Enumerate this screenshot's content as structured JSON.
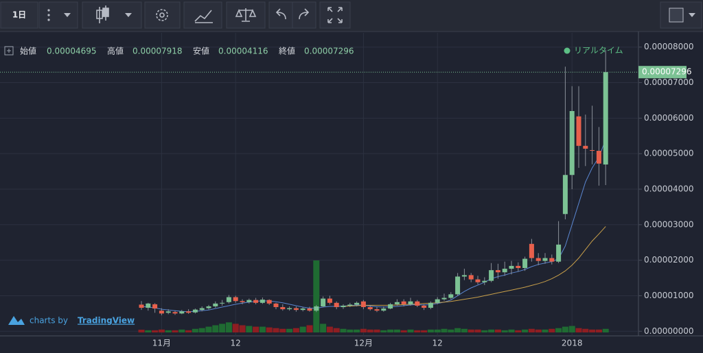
{
  "toolbar": {
    "interval": "1日"
  },
  "header": {
    "open_label": "始値",
    "high_label": "高値",
    "low_label": "安値",
    "close_label": "終値",
    "realtime": "リアルタイム"
  },
  "watermark": {
    "prefix": "charts by",
    "brand": "TradingView"
  },
  "chart_data": {
    "type": "candlestick",
    "categories": [
      null,
      null,
      null,
      "11月",
      null,
      null,
      null,
      null,
      null,
      null,
      null,
      null,
      null,
      null,
      "12",
      null,
      null,
      null,
      null,
      null,
      null,
      null,
      null,
      null,
      null,
      null,
      null,
      null,
      null,
      null,
      null,
      null,
      null,
      "12月",
      null,
      null,
      null,
      null,
      null,
      null,
      null,
      null,
      null,
      null,
      "12",
      null,
      null,
      null,
      null,
      null,
      null,
      null,
      null,
      null,
      null,
      null,
      null,
      null,
      null,
      null,
      null,
      null,
      null,
      null,
      "2018",
      null,
      null,
      null,
      null,
      null
    ],
    "ohlc": {
      "open": [
        7.5e-06,
        6.6e-06,
        7.6e-06,
        5.8e-06,
        5.2e-06,
        5.4e-06,
        5e-06,
        5.6e-06,
        5.3e-06,
        6e-06,
        6.5e-06,
        7e-06,
        7.8e-06,
        8.2e-06,
        9.6e-06,
        8.5e-06,
        8.2e-06,
        8.8e-06,
        8e-06,
        8.8e-06,
        7.8e-06,
        6.8e-06,
        6.2e-06,
        6.5e-06,
        6e-06,
        6.4e-06,
        5.8e-06,
        7e-06,
        9.2e-06,
        8e-06,
        6.8e-06,
        7.2e-06,
        7.5e-06,
        8.4e-06,
        6.8e-06,
        6.2e-06,
        5.8e-06,
        6.4e-06,
        7.6e-06,
        8.4e-06,
        7.6e-06,
        8.4e-06,
        7.2e-06,
        6.6e-06,
        8e-06,
        9e-06,
        9.4e-06,
        1.04e-05,
        1.54e-05,
        1.58e-05,
        1.46e-05,
        1.38e-05,
        1.42e-05,
        1.72e-05,
        1.66e-05,
        1.76e-05,
        1.84e-05,
        1.78e-05,
        2.46e-05,
        2.06e-05,
        1.98e-05,
        2.06e-05,
        1.96e-05,
        3.3e-05,
        4.4e-05,
        6.05e-05,
        5.22e-05,
        5.1e-05,
        5.08e-05,
        4.695e-05
      ],
      "high": [
        8.5e-06,
        8e-06,
        7.9e-06,
        6.5e-06,
        6.2e-06,
        5.8e-06,
        6e-06,
        6.2e-06,
        6.4e-06,
        7e-06,
        7.4e-06,
        8.4e-06,
        8.8e-06,
        1.02e-05,
        1e-05,
        9e-06,
        9.2e-06,
        9.4e-06,
        9.5e-06,
        9e-06,
        8e-06,
        7.6e-06,
        7e-06,
        7e-06,
        6.8e-06,
        6.9e-06,
        7.4e-06,
        9.8e-06,
        1e-05,
        8.4e-06,
        7.6e-06,
        8e-06,
        8.4e-06,
        8.8e-06,
        7.4e-06,
        6.8e-06,
        7e-06,
        8e-06,
        9e-06,
        9e-06,
        9.4e-06,
        8.8e-06,
        7.6e-06,
        8.4e-06,
        9.6e-06,
        1.06e-05,
        1.1e-05,
        1.64e-05,
        1.76e-05,
        1.64e-05,
        1.56e-05,
        1.52e-05,
        1.92e-05,
        1.9e-05,
        1.96e-05,
        1.98e-05,
        1.94e-05,
        2.1e-05,
        2.6e-05,
        2.2e-05,
        2.2e-05,
        2.16e-05,
        3.1e-05,
        7.45e-05,
        6.9e-05,
        6.9e-05,
        6.1e-05,
        6.35e-05,
        5.75e-05,
        7.918e-05
      ],
      "low": [
        6e-06,
        5.8e-06,
        5.2e-06,
        4.5e-06,
        4.8e-06,
        4.6e-06,
        4.8e-06,
        4.9e-06,
        5e-06,
        5.6e-06,
        6.1e-06,
        6.6e-06,
        7.2e-06,
        7.8e-06,
        8e-06,
        7.6e-06,
        7.8e-06,
        7.6e-06,
        7.7e-06,
        7.4e-06,
        6.2e-06,
        5.8e-06,
        5.8e-06,
        5.5e-06,
        5.6e-06,
        5.5e-06,
        5.4e-06,
        6.8e-06,
        7.5e-06,
        6.2e-06,
        6.3e-06,
        6.8e-06,
        7e-06,
        6.2e-06,
        5.8e-06,
        5.4e-06,
        5.5e-06,
        6.2e-06,
        7.2e-06,
        7e-06,
        7.2e-06,
        6.8e-06,
        6e-06,
        6.2e-06,
        7.6e-06,
        8.6e-06,
        9e-06,
        1e-05,
        1.44e-05,
        1.38e-05,
        1.32e-05,
        1.3e-05,
        1.38e-05,
        1.48e-05,
        1.56e-05,
        1.6e-05,
        1.68e-05,
        1.7e-05,
        1.96e-05,
        1.86e-05,
        1.9e-05,
        1.88e-05,
        1.92e-05,
        3.15e-05,
        4e-05,
        4.6e-05,
        4.65e-05,
        4.7e-05,
        4.1e-05,
        4.116e-05
      ],
      "close": [
        6.6e-06,
        7.8e-06,
        6.4e-06,
        5e-06,
        5.6e-06,
        5e-06,
        5.6e-06,
        5.2e-06,
        6.1e-06,
        6.5e-06,
        7e-06,
        7.8e-06,
        8e-06,
        9.6e-06,
        8.5e-06,
        8.2e-06,
        8.8e-06,
        8e-06,
        8.9e-06,
        7.8e-06,
        6.8e-06,
        6.2e-06,
        6.5e-06,
        6e-06,
        6.4e-06,
        5.8e-06,
        7e-06,
        9.2e-06,
        8e-06,
        6.8e-06,
        7.2e-06,
        7.5e-06,
        8e-06,
        6.8e-06,
        6.2e-06,
        5.8e-06,
        6.4e-06,
        7.6e-06,
        8.2e-06,
        7.6e-06,
        8.4e-06,
        7.2e-06,
        6.6e-06,
        8e-06,
        9e-06,
        9.4e-06,
        1.04e-05,
        1.54e-05,
        1.58e-05,
        1.46e-05,
        1.38e-05,
        1.42e-05,
        1.72e-05,
        1.66e-05,
        1.76e-05,
        1.84e-05,
        1.78e-05,
        2.04e-05,
        2.06e-05,
        1.98e-05,
        2.06e-05,
        1.96e-05,
        2.44e-05,
        4.4e-05,
        6.2e-05,
        5.22e-05,
        5.14e-05,
        5.08e-05,
        4.72e-05,
        7.296e-05
      ]
    },
    "volume": [
      4,
      3,
      3,
      4,
      3,
      3,
      4,
      3,
      5,
      6,
      8,
      10,
      12,
      14,
      12,
      10,
      9,
      8,
      8,
      7,
      6,
      5,
      5,
      6,
      8,
      10,
      100,
      12,
      8,
      6,
      5,
      4,
      4,
      5,
      4,
      4,
      3,
      4,
      4,
      3,
      4,
      3,
      3,
      4,
      4,
      5,
      4,
      6,
      5,
      4,
      4,
      3,
      4,
      4,
      3,
      4,
      3,
      4,
      5,
      4,
      4,
      5,
      6,
      8,
      9,
      6,
      5,
      4,
      4,
      5
    ],
    "lines": [
      {
        "color": "#5b86d0",
        "values": [
          7e-06,
          6.8e-06,
          6.6e-06,
          6.2e-06,
          6e-06,
          5.8e-06,
          5.6e-06,
          5.5e-06,
          5.6e-06,
          5.8e-06,
          6e-06,
          6.4e-06,
          6.8e-06,
          7.2e-06,
          7.6e-06,
          7.9e-06,
          8.2e-06,
          8.4e-06,
          8.6e-06,
          8.5e-06,
          8.3e-06,
          8e-06,
          7.6e-06,
          7.2e-06,
          6.8e-06,
          6.5e-06,
          6.5e-06,
          6.8e-06,
          7e-06,
          7e-06,
          7.1e-06,
          7.2e-06,
          7.4e-06,
          7.3e-06,
          7.1e-06,
          6.9e-06,
          6.8e-06,
          6.9e-06,
          7e-06,
          7.2e-06,
          7.4e-06,
          7.5e-06,
          7.4e-06,
          7.5e-06,
          7.8e-06,
          8.2e-06,
          8.8e-06,
          1e-05,
          1.12e-05,
          1.22e-05,
          1.3e-05,
          1.38e-05,
          1.48e-05,
          1.54e-05,
          1.58e-05,
          1.64e-05,
          1.68e-05,
          1.74e-05,
          1.82e-05,
          1.88e-05,
          1.92e-05,
          1.96e-05,
          2.04e-05,
          2.4e-05,
          3e-05,
          3.6e-05,
          4.2e-05,
          4.6e-05,
          4.9e-05,
          5.4e-05
        ]
      },
      {
        "color": "#c9a04a",
        "values": [
          null,
          null,
          null,
          null,
          null,
          null,
          null,
          null,
          null,
          null,
          null,
          null,
          null,
          null,
          null,
          null,
          null,
          null,
          null,
          null,
          null,
          null,
          null,
          null,
          null,
          null,
          null,
          null,
          null,
          null,
          7e-06,
          7.1e-06,
          7.2e-06,
          7.3e-06,
          7.3e-06,
          7.3e-06,
          7.3e-06,
          7.3e-06,
          7.4e-06,
          7.5e-06,
          7.6e-06,
          7.7e-06,
          7.8e-06,
          7.9e-06,
          8e-06,
          8.2e-06,
          8.4e-06,
          8.7e-06,
          9e-06,
          9.3e-06,
          9.6e-06,
          1e-05,
          1.04e-05,
          1.08e-05,
          1.12e-05,
          1.16e-05,
          1.2e-05,
          1.24e-05,
          1.29e-05,
          1.34e-05,
          1.4e-05,
          1.48e-05,
          1.58e-05,
          1.7e-05,
          1.86e-05,
          2.06e-05,
          2.3e-05,
          2.54e-05,
          2.74e-05,
          2.95e-05
        ]
      }
    ],
    "up_color": "#7cc294",
    "down_color": "#e8604c",
    "volume_up_color": "#1f6b32",
    "volume_down_color": "#8e1e22",
    "ylim": [
      -1.3e-06,
      8.4e-05
    ],
    "yticks": [
      {
        "value": 0,
        "label": "0.00000000"
      },
      {
        "value": 1e-05,
        "label": "0.00001000"
      },
      {
        "value": 2e-05,
        "label": "0.00002000"
      },
      {
        "value": 3e-05,
        "label": "0.00003000"
      },
      {
        "value": 4e-05,
        "label": "0.00004000"
      },
      {
        "value": 5e-05,
        "label": "0.00005000"
      },
      {
        "value": 6e-05,
        "label": "0.00006000"
      },
      {
        "value": 7e-05,
        "label": "0.00007000"
      },
      {
        "value": 8e-05,
        "label": "0.00008000"
      }
    ],
    "grid": true
  }
}
